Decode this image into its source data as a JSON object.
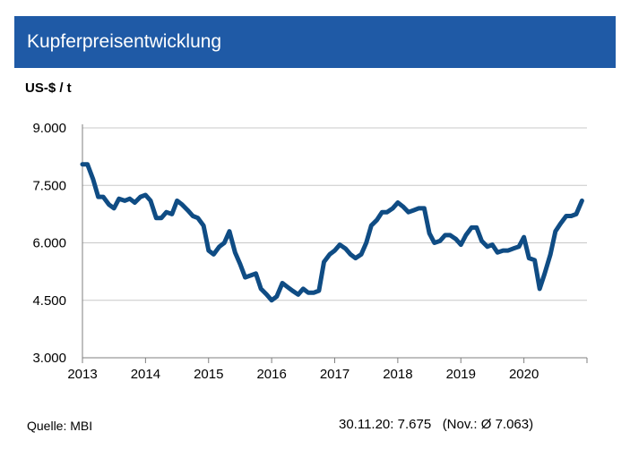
{
  "title": "Kupferpreisentwicklung",
  "colors": {
    "header": "#1f5aa6",
    "line": "#0f4c84",
    "grid": "#c8c8c8",
    "axis": "#7f7f7f"
  },
  "chart_data": {
    "type": "line",
    "title": "Kupferpreisentwicklung",
    "ylabel": "US-$ / t",
    "xlabel": "",
    "ylim": [
      3000,
      9000
    ],
    "xlim": [
      2013.0,
      2021.0
    ],
    "yticks": [
      {
        "value": 3000,
        "label": "3.000"
      },
      {
        "value": 4500,
        "label": "4.500"
      },
      {
        "value": 6000,
        "label": "6.000"
      },
      {
        "value": 7500,
        "label": "7.500"
      },
      {
        "value": 9000,
        "label": "9.000"
      }
    ],
    "xticks": [
      {
        "value": 2013,
        "label": "2013"
      },
      {
        "value": 2014,
        "label": "2014"
      },
      {
        "value": 2015,
        "label": "2015"
      },
      {
        "value": 2016,
        "label": "2016"
      },
      {
        "value": 2017,
        "label": "2017"
      },
      {
        "value": 2018,
        "label": "2018"
      },
      {
        "value": 2019,
        "label": "2019"
      },
      {
        "value": 2020,
        "label": "2020"
      }
    ],
    "grid": "horizontal",
    "series": [
      {
        "x": [
          2013.0,
          2013.08,
          2013.17,
          2013.25,
          2013.33,
          2013.42,
          2013.5,
          2013.58,
          2013.67,
          2013.75,
          2013.83,
          2013.92,
          2014.0,
          2014.08,
          2014.17,
          2014.25,
          2014.33,
          2014.42,
          2014.5,
          2014.58,
          2014.67,
          2014.75,
          2014.83,
          2014.92,
          2015.0,
          2015.08,
          2015.17,
          2015.25,
          2015.33,
          2015.42,
          2015.5,
          2015.58,
          2015.67,
          2015.75,
          2015.83,
          2015.92,
          2016.0,
          2016.08,
          2016.17,
          2016.25,
          2016.33,
          2016.42,
          2016.5,
          2016.58,
          2016.67,
          2016.75,
          2016.83,
          2016.92,
          2017.0,
          2017.08,
          2017.17,
          2017.25,
          2017.33,
          2017.42,
          2017.5,
          2017.58,
          2017.67,
          2017.75,
          2017.83,
          2017.92,
          2018.0,
          2018.08,
          2018.17,
          2018.25,
          2018.33,
          2018.42,
          2018.5,
          2018.58,
          2018.67,
          2018.75,
          2018.83,
          2018.92,
          2019.0,
          2019.08,
          2019.17,
          2019.25,
          2019.33,
          2019.42,
          2019.5,
          2019.58,
          2019.67,
          2019.75,
          2019.83,
          2019.92,
          2020.0,
          2020.08,
          2020.17,
          2020.25,
          2020.33,
          2020.42,
          2020.5,
          2020.58,
          2020.67,
          2020.75,
          2020.83,
          2020.92
        ],
        "y": [
          8050,
          8050,
          7650,
          7200,
          7200,
          7000,
          6900,
          7150,
          7100,
          7150,
          7050,
          7200,
          7250,
          7100,
          6650,
          6650,
          6800,
          6750,
          7100,
          7000,
          6850,
          6700,
          6650,
          6450,
          5800,
          5700,
          5900,
          6000,
          6300,
          5750,
          5450,
          5100,
          5150,
          5200,
          4800,
          4650,
          4500,
          4600,
          4950,
          4850,
          4750,
          4650,
          4800,
          4700,
          4700,
          4750,
          5500,
          5700,
          5800,
          5950,
          5850,
          5700,
          5600,
          5700,
          6000,
          6450,
          6600,
          6800,
          6800,
          6900,
          7050,
          6950,
          6800,
          6850,
          6900,
          6900,
          6250,
          6000,
          6050,
          6200,
          6200,
          6100,
          5950,
          6200,
          6400,
          6400,
          6050,
          5900,
          5950,
          5750,
          5800,
          5800,
          5850,
          5900,
          6150,
          5600,
          5550,
          4800,
          5200,
          5700,
          6300,
          6500,
          6700,
          6700,
          6750,
          7100
        ]
      }
    ]
  },
  "footer": {
    "source": "Quelle: MBI",
    "date": "30.11.20:",
    "value": "7.675",
    "average": "(Nov.: Ø 7.063)"
  }
}
